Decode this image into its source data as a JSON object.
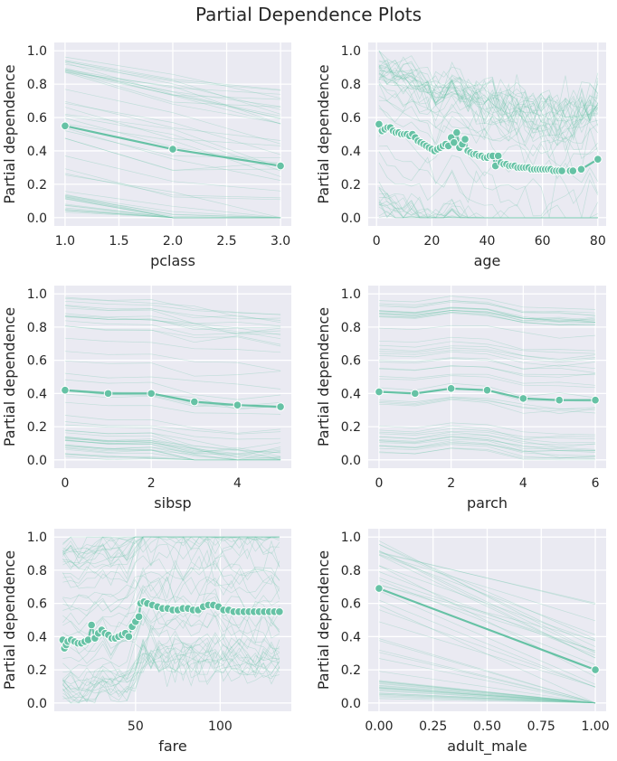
{
  "figure": {
    "title": "Partial Dependence Plots"
  },
  "colors": {
    "pd_line": "#66c2a5",
    "ice_line": "#66c2a5",
    "panel_bg": "#eaeaf2",
    "grid": "#ffffff"
  },
  "chart_data": [
    {
      "type": "line",
      "id": "pclass",
      "xlabel": "pclass",
      "ylabel": "Partial dependence",
      "xlim": [
        0.9,
        3.1
      ],
      "ylim": [
        -0.05,
        1.05
      ],
      "xticks": [
        1.0,
        1.5,
        2.0,
        2.5,
        3.0
      ],
      "xtick_labels": [
        "1.0",
        "1.5",
        "2.0",
        "2.5",
        "3.0"
      ],
      "yticks": [
        0,
        0.2,
        0.4,
        0.6,
        0.8,
        1.0
      ],
      "ytick_labels": [
        "0.0",
        "0.2",
        "0.4",
        "0.6",
        "0.8",
        "1.0"
      ],
      "grid": true,
      "ice": true,
      "series": [
        {
          "x": [
            1,
            2,
            3
          ],
          "y": [
            0.55,
            0.41,
            0.31
          ]
        }
      ]
    },
    {
      "type": "line",
      "id": "age",
      "xlabel": "age",
      "ylabel": "Partial dependence",
      "xlim": [
        -3,
        83
      ],
      "ylim": [
        -0.05,
        1.05
      ],
      "xticks": [
        0,
        20,
        40,
        60,
        80
      ],
      "xtick_labels": [
        "0",
        "20",
        "40",
        "60",
        "80"
      ],
      "yticks": [
        0,
        0.2,
        0.4,
        0.6,
        0.8,
        1.0
      ],
      "ytick_labels": [
        "0.0",
        "0.2",
        "0.4",
        "0.6",
        "0.8",
        "1.0"
      ],
      "grid": true,
      "ice": true,
      "series": [
        {
          "x": [
            0.9,
            2,
            3,
            4,
            5,
            6,
            7,
            8,
            9,
            10,
            11,
            12,
            13,
            14,
            15,
            16,
            17,
            18,
            19,
            20,
            21,
            22,
            23,
            24,
            25,
            26,
            27,
            28,
            29,
            30,
            31,
            32,
            33,
            34,
            35,
            36,
            37,
            38,
            39,
            40,
            41,
            42,
            43,
            44,
            45,
            46,
            47,
            48,
            49,
            50,
            51,
            52,
            53,
            54,
            55,
            56,
            57,
            58,
            59,
            60,
            61,
            62,
            63,
            64,
            65,
            66,
            67,
            70,
            71,
            74,
            80
          ],
          "y": [
            0.56,
            0.52,
            0.53,
            0.54,
            0.54,
            0.52,
            0.51,
            0.51,
            0.5,
            0.5,
            0.5,
            0.49,
            0.5,
            0.48,
            0.46,
            0.45,
            0.44,
            0.43,
            0.42,
            0.41,
            0.4,
            0.41,
            0.42,
            0.43,
            0.44,
            0.43,
            0.48,
            0.45,
            0.51,
            0.42,
            0.44,
            0.47,
            0.4,
            0.39,
            0.38,
            0.38,
            0.37,
            0.37,
            0.36,
            0.36,
            0.37,
            0.37,
            0.31,
            0.37,
            0.33,
            0.32,
            0.32,
            0.31,
            0.31,
            0.31,
            0.3,
            0.3,
            0.3,
            0.3,
            0.3,
            0.29,
            0.29,
            0.29,
            0.29,
            0.29,
            0.29,
            0.29,
            0.29,
            0.28,
            0.28,
            0.28,
            0.28,
            0.28,
            0.28,
            0.29,
            0.35
          ]
        }
      ]
    },
    {
      "type": "line",
      "id": "sibsp",
      "xlabel": "sibsp",
      "ylabel": "Partial dependence",
      "xlim": [
        -0.25,
        5.25
      ],
      "ylim": [
        -0.05,
        1.05
      ],
      "xticks": [
        0,
        2,
        4
      ],
      "xtick_labels": [
        "0",
        "2",
        "4"
      ],
      "yticks": [
        0,
        0.2,
        0.4,
        0.6,
        0.8,
        1.0
      ],
      "ytick_labels": [
        "0.0",
        "0.2",
        "0.4",
        "0.6",
        "0.8",
        "1.0"
      ],
      "grid": true,
      "ice": true,
      "series": [
        {
          "x": [
            0,
            1,
            2,
            3,
            4,
            5
          ],
          "y": [
            0.42,
            0.4,
            0.4,
            0.35,
            0.33,
            0.32
          ]
        }
      ]
    },
    {
      "type": "line",
      "id": "parch",
      "xlabel": "parch",
      "ylabel": "Partial dependence",
      "xlim": [
        -0.3,
        6.3
      ],
      "ylim": [
        -0.05,
        1.05
      ],
      "xticks": [
        0,
        2,
        4,
        6
      ],
      "xtick_labels": [
        "0",
        "2",
        "4",
        "6"
      ],
      "yticks": [
        0,
        0.2,
        0.4,
        0.6,
        0.8,
        1.0
      ],
      "ytick_labels": [
        "0.0",
        "0.2",
        "0.4",
        "0.6",
        "0.8",
        "1.0"
      ],
      "grid": true,
      "ice": true,
      "series": [
        {
          "x": [
            0,
            1,
            2,
            3,
            4,
            5,
            6
          ],
          "y": [
            0.41,
            0.4,
            0.43,
            0.42,
            0.37,
            0.36,
            0.36
          ]
        }
      ]
    },
    {
      "type": "line",
      "id": "fare",
      "xlabel": "fare",
      "ylabel": "Partial dependence",
      "xlim": [
        2,
        142
      ],
      "ylim": [
        -0.05,
        1.05
      ],
      "xticks": [
        50,
        100
      ],
      "xtick_labels": [
        "50",
        "100"
      ],
      "yticks": [
        0,
        0.2,
        0.4,
        0.6,
        0.8,
        1.0
      ],
      "ytick_labels": [
        "0.0",
        "0.2",
        "0.4",
        "0.6",
        "0.8",
        "1.0"
      ],
      "grid": true,
      "ice": true,
      "series": [
        {
          "x": [
            7,
            8,
            9,
            10,
            12,
            14,
            16,
            18,
            20,
            22,
            24,
            26,
            28,
            30,
            32,
            34,
            36,
            38,
            40,
            42,
            44,
            46,
            48,
            50,
            52,
            53,
            55,
            57,
            60,
            63,
            66,
            69,
            72,
            75,
            78,
            81,
            84,
            87,
            90,
            93,
            96,
            99,
            102,
            105,
            108,
            111,
            114,
            117,
            120,
            123,
            126,
            129,
            132,
            135
          ],
          "y": [
            0.38,
            0.33,
            0.35,
            0.37,
            0.38,
            0.37,
            0.36,
            0.36,
            0.37,
            0.38,
            0.47,
            0.39,
            0.42,
            0.44,
            0.42,
            0.41,
            0.39,
            0.39,
            0.4,
            0.41,
            0.42,
            0.4,
            0.46,
            0.49,
            0.52,
            0.6,
            0.61,
            0.6,
            0.59,
            0.58,
            0.57,
            0.57,
            0.56,
            0.56,
            0.57,
            0.57,
            0.56,
            0.56,
            0.58,
            0.59,
            0.59,
            0.58,
            0.56,
            0.56,
            0.55,
            0.55,
            0.55,
            0.55,
            0.55,
            0.55,
            0.55,
            0.55,
            0.55,
            0.55
          ]
        }
      ]
    },
    {
      "type": "line",
      "id": "adult_male",
      "xlabel": "adult_male",
      "ylabel": "Partial dependence",
      "xlim": [
        -0.05,
        1.05
      ],
      "ylim": [
        -0.05,
        1.05
      ],
      "xticks": [
        0,
        0.25,
        0.5,
        0.75,
        1.0
      ],
      "xtick_labels": [
        "0.00",
        "0.25",
        "0.50",
        "0.75",
        "1.00"
      ],
      "yticks": [
        0,
        0.2,
        0.4,
        0.6,
        0.8,
        1.0
      ],
      "ytick_labels": [
        "0.0",
        "0.2",
        "0.4",
        "0.6",
        "0.8",
        "1.0"
      ],
      "grid": true,
      "ice": true,
      "series": [
        {
          "x": [
            0,
            1
          ],
          "y": [
            0.69,
            0.2
          ]
        }
      ]
    }
  ]
}
